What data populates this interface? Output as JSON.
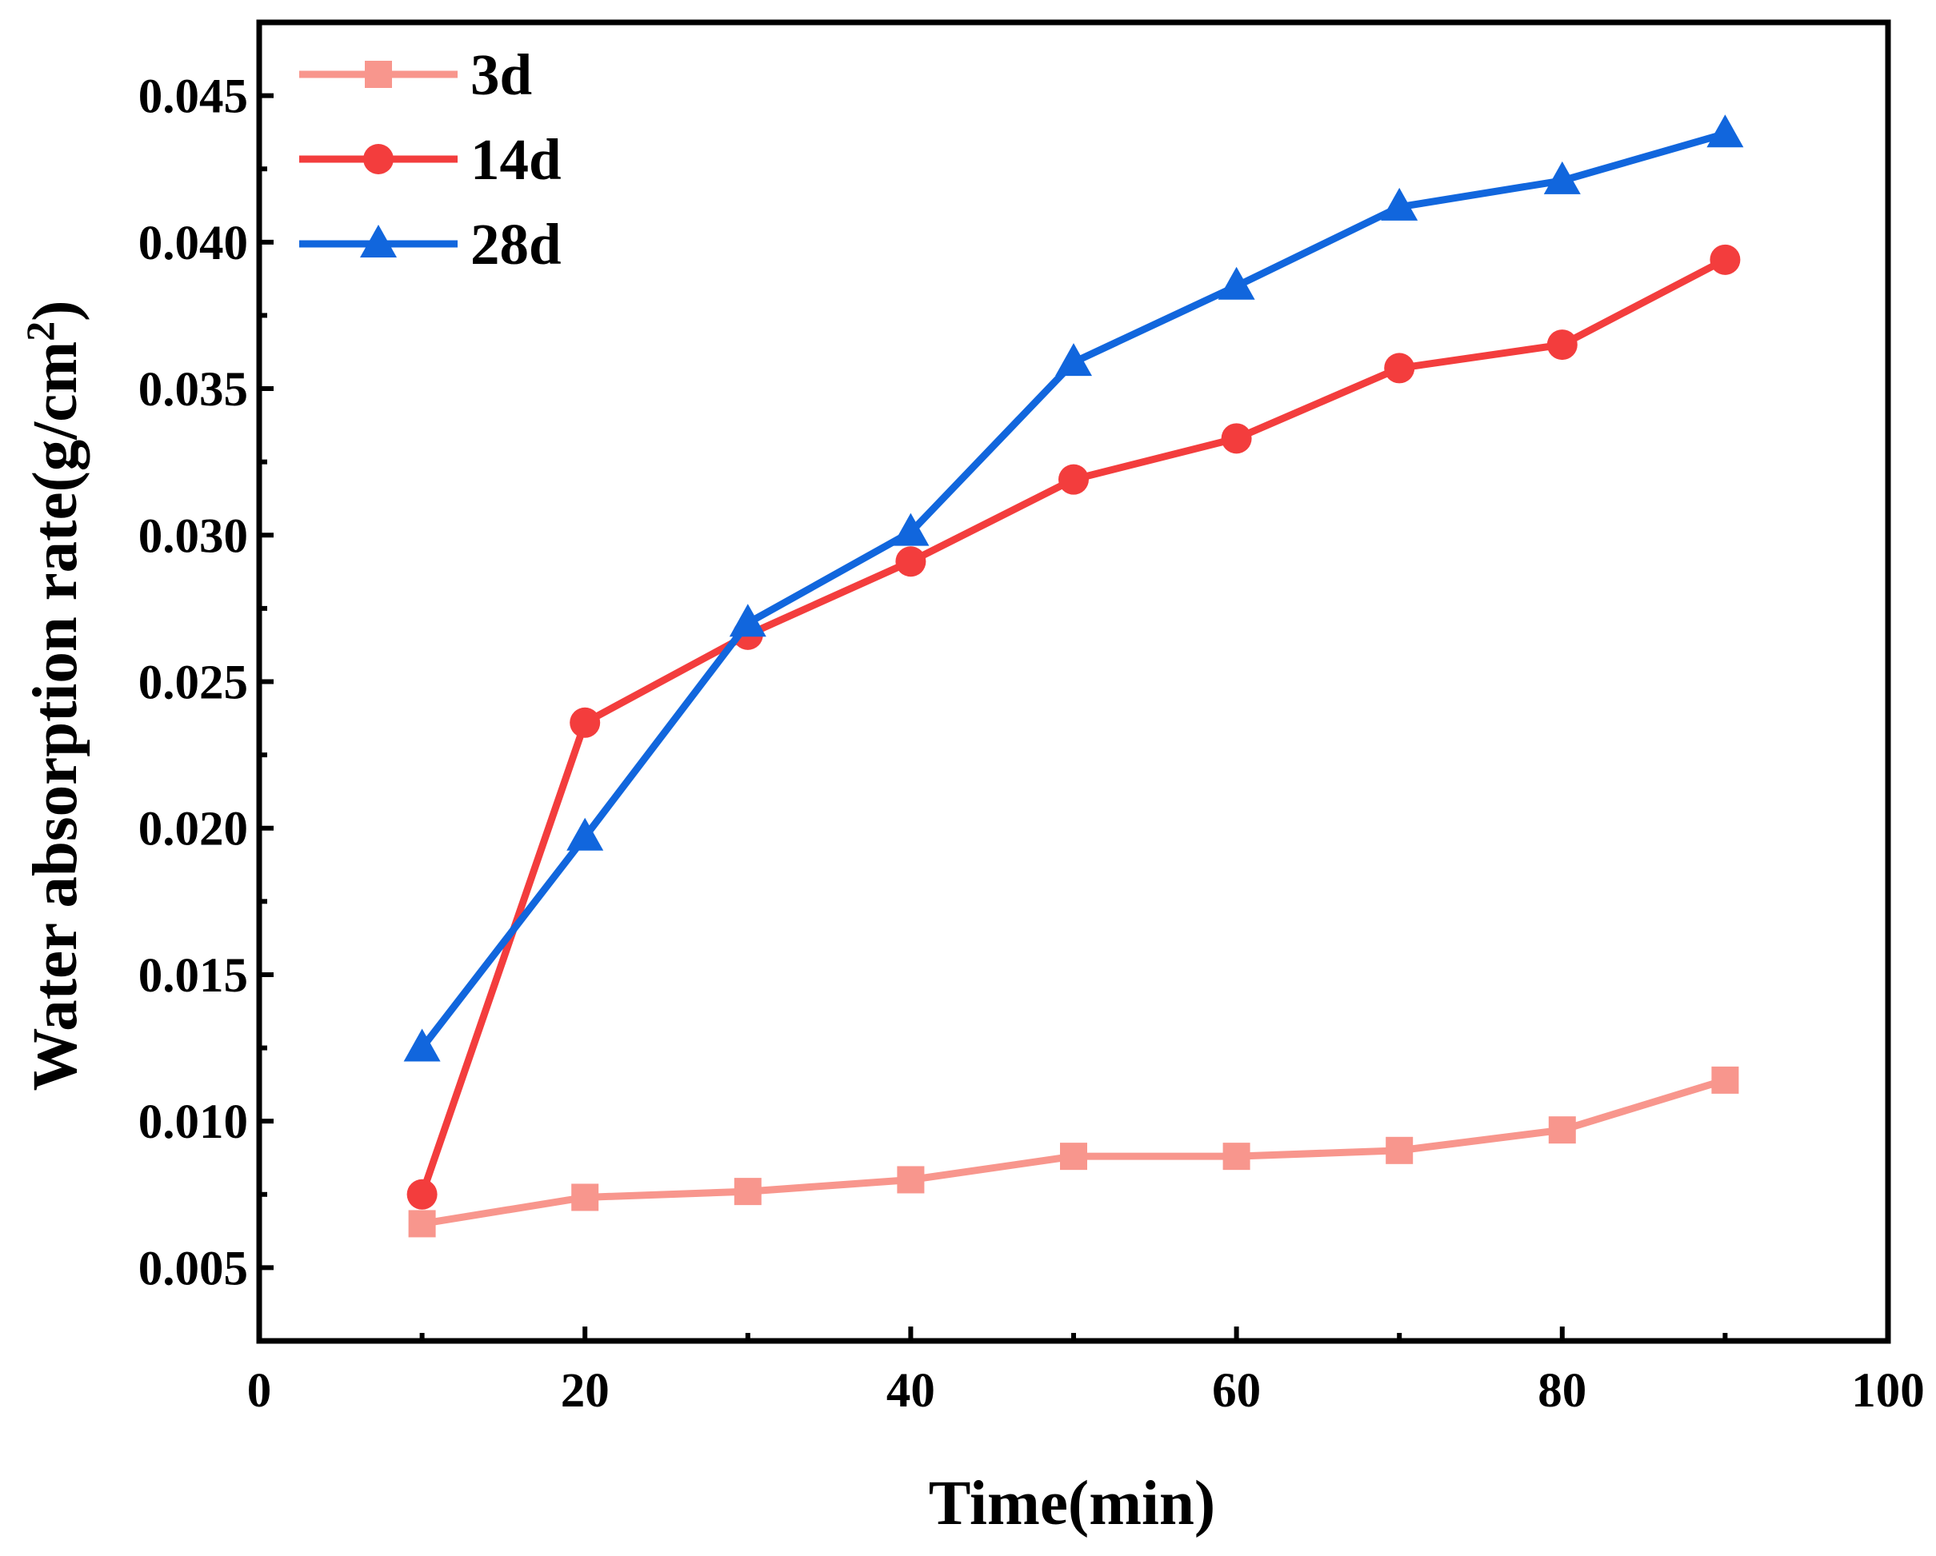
{
  "chart_data": {
    "type": "line",
    "title": "",
    "xlabel": "Time(min)",
    "ylabel_main": "Water absorption rate(g/cm",
    "ylabel_sup": "2",
    "ylabel_close": ")",
    "xlim": [
      0,
      100
    ],
    "ylim": [
      0.0025,
      0.0475
    ],
    "xticks": [
      0,
      20,
      40,
      60,
      80,
      100
    ],
    "xtick_labels": [
      "0",
      "20",
      "40",
      "60",
      "80",
      "100"
    ],
    "yticks": [
      0.005,
      0.01,
      0.015,
      0.02,
      0.025,
      0.03,
      0.035,
      0.04,
      0.045
    ],
    "ytick_labels": [
      "0.005",
      "0.010",
      "0.015",
      "0.020",
      "0.025",
      "0.030",
      "0.035",
      "0.040",
      "0.045"
    ],
    "legend_position": "top-left",
    "grid": false,
    "x": [
      10,
      20,
      30,
      40,
      50,
      60,
      70,
      80,
      90
    ],
    "series": [
      {
        "name": "3d",
        "color": "#f8968d",
        "marker": "square",
        "values": [
          0.0065,
          0.0074,
          0.0076,
          0.008,
          0.0088,
          0.0088,
          0.009,
          0.0097,
          0.0114
        ]
      },
      {
        "name": "14d",
        "color": "#f33d3d",
        "marker": "circle",
        "values": [
          0.0075,
          0.0236,
          0.0266,
          0.0291,
          0.0319,
          0.0333,
          0.0357,
          0.0365,
          0.0394
        ]
      },
      {
        "name": "28d",
        "color": "#1166dd",
        "marker": "triangle",
        "values": [
          0.0125,
          0.0197,
          0.027,
          0.0301,
          0.0359,
          0.0385,
          0.0412,
          0.0421,
          0.0437
        ]
      }
    ]
  }
}
